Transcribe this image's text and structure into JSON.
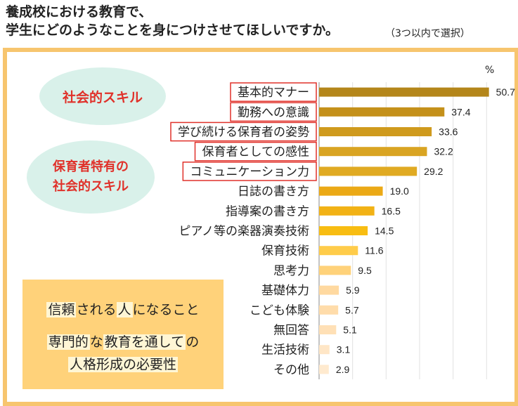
{
  "title": {
    "line1": "養成校における教育で、",
    "line2": "学生にどのようなことを身につけさせてほしいですか。",
    "note": "（3つ以内で選択）"
  },
  "bubbles": {
    "social_skill": "社会的スキル",
    "teacher_line1": "保育者特有の",
    "teacher_line2": "社会的スキル"
  },
  "note_box": {
    "line1_parts": [
      "信頼",
      "される",
      "人",
      "になること"
    ],
    "line2_parts": [
      "専門的",
      "な",
      "教育を通して",
      "の"
    ],
    "line3": "人格形成の必要性"
  },
  "unit": "%",
  "highlight_color": "#e0312a",
  "chart_data": {
    "type": "bar",
    "orientation": "horizontal",
    "categories": [
      "基本的マナー",
      "勤務への意識",
      "学び続ける保育者の姿勢",
      "保育者としての感性",
      "コミュニケーション力",
      "日誌の書き方",
      "指導案の書き方",
      "ピアノ等の楽器演奏技術",
      "保育技術",
      "思考力",
      "基礎体力",
      "こども体験",
      "無回答",
      "生活技術",
      "その他"
    ],
    "values": [
      50.7,
      37.4,
      33.6,
      32.2,
      29.2,
      19.0,
      16.5,
      14.5,
      11.6,
      9.5,
      5.9,
      5.7,
      5.1,
      3.1,
      2.9
    ],
    "value_labels": [
      "50.7",
      "37.4",
      "33.6",
      "32.2",
      "29.2",
      "19.0",
      "16.5",
      "14.5",
      "11.6",
      "9.5",
      "5.9",
      "5.7",
      "5.1",
      "3.1",
      "2.9"
    ],
    "colors": [
      "#b4861a",
      "#c4901a",
      "#cf9a1d",
      "#d9a422",
      "#e0aa22",
      "#eba915",
      "#f2b215",
      "#f8bd12",
      "#ffcc4a",
      "#ffd27a",
      "#ffd9a0",
      "#ffdcaa",
      "#ffe0b6",
      "#ffe6c6",
      "#ffeacf"
    ],
    "highlighted": [
      true,
      true,
      true,
      true,
      true,
      false,
      false,
      false,
      false,
      false,
      false,
      false,
      false,
      false,
      false
    ],
    "xlim": [
      0,
      60
    ],
    "grid": true
  }
}
